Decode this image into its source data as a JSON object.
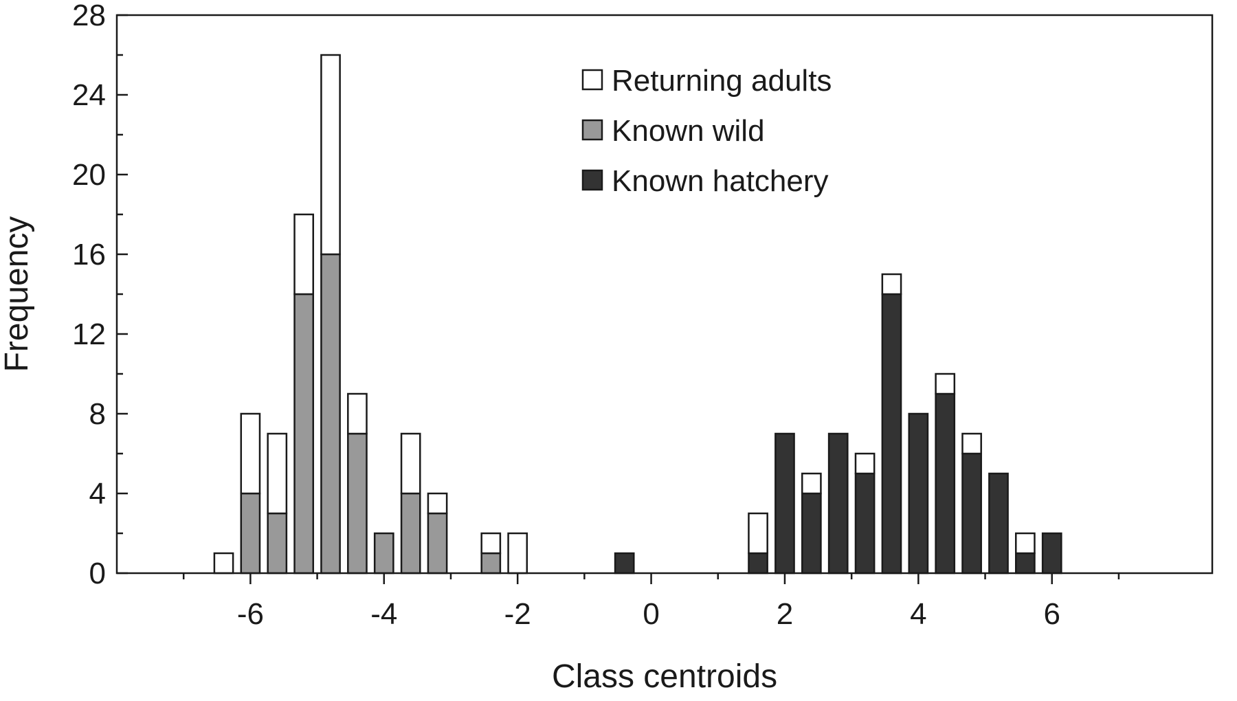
{
  "chart_data": {
    "type": "bar",
    "stacked": true,
    "title": "",
    "xlabel": "Class centroids",
    "ylabel": "Frequency",
    "xlim": [
      -8,
      8.4
    ],
    "ylim": [
      0,
      28
    ],
    "xticks": [
      -6,
      -4,
      -2,
      0,
      2,
      4,
      6
    ],
    "yticks": [
      0,
      4,
      8,
      12,
      16,
      20,
      24,
      28
    ],
    "grid": false,
    "legend_position": "top-right",
    "series": [
      {
        "name": "Known hatchery",
        "color": "#333333",
        "points": [
          {
            "x": -0.4,
            "value": 1
          },
          {
            "x": 1.6,
            "value": 1
          },
          {
            "x": 2.0,
            "value": 7
          },
          {
            "x": 2.4,
            "value": 4
          },
          {
            "x": 2.8,
            "value": 7
          },
          {
            "x": 3.2,
            "value": 5
          },
          {
            "x": 3.6,
            "value": 14
          },
          {
            "x": 4.0,
            "value": 8
          },
          {
            "x": 4.4,
            "value": 9
          },
          {
            "x": 4.8,
            "value": 6
          },
          {
            "x": 5.2,
            "value": 5
          },
          {
            "x": 5.6,
            "value": 1
          },
          {
            "x": 6.0,
            "value": 2
          }
        ]
      },
      {
        "name": "Known wild",
        "color": "#999999",
        "points": [
          {
            "x": -6.0,
            "value": 4
          },
          {
            "x": -5.6,
            "value": 3
          },
          {
            "x": -5.2,
            "value": 14
          },
          {
            "x": -4.8,
            "value": 16
          },
          {
            "x": -4.4,
            "value": 7
          },
          {
            "x": -4.0,
            "value": 2
          },
          {
            "x": -3.6,
            "value": 4
          },
          {
            "x": -3.2,
            "value": 3
          },
          {
            "x": -2.4,
            "value": 1
          }
        ]
      },
      {
        "name": "Returning adults",
        "color": "#ffffff",
        "points": [
          {
            "x": -6.4,
            "value": 1
          },
          {
            "x": -6.0,
            "value": 4
          },
          {
            "x": -5.6,
            "value": 4
          },
          {
            "x": -5.2,
            "value": 4
          },
          {
            "x": -4.8,
            "value": 10
          },
          {
            "x": -4.4,
            "value": 2
          },
          {
            "x": -3.6,
            "value": 3
          },
          {
            "x": -3.2,
            "value": 1
          },
          {
            "x": -2.4,
            "value": 1
          },
          {
            "x": -2.0,
            "value": 2
          },
          {
            "x": 1.6,
            "value": 2
          },
          {
            "x": 2.4,
            "value": 1
          },
          {
            "x": 3.2,
            "value": 1
          },
          {
            "x": 3.6,
            "value": 1
          },
          {
            "x": 4.4,
            "value": 1
          },
          {
            "x": 4.8,
            "value": 1
          },
          {
            "x": 5.6,
            "value": 1
          }
        ]
      }
    ],
    "legend": [
      "Returning adults",
      "Known wild",
      "Known hatchery"
    ]
  }
}
